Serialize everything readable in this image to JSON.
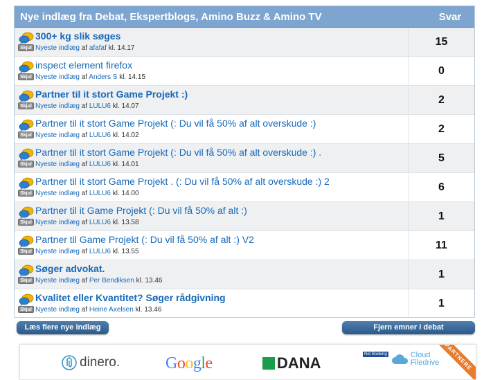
{
  "header": {
    "title": "Nye indlæg fra Debat, Ekspertblogs, Amino Buzz & Amino TV",
    "count_label": "Svar"
  },
  "skjul_label": "Skjul",
  "newest_label": "Nyeste indlæg",
  "by_label": "af",
  "at_label": "kl.",
  "posts": [
    {
      "title": "300+ kg slik søges",
      "bold": true,
      "author": "afafaf",
      "time": "14.17",
      "replies": "15"
    },
    {
      "title": "inspect element firefox",
      "bold": false,
      "author": "Anders S",
      "time": "14.15",
      "replies": "0"
    },
    {
      "title": "Partner til it stort Game Projekt :)",
      "bold": true,
      "author": "LULU6",
      "time": "14.07",
      "replies": "2"
    },
    {
      "title": "Partner til it stort Game Projekt (: Du vil få 50% af alt overskude :)",
      "bold": false,
      "author": "LULU6",
      "time": "14.02",
      "replies": "2"
    },
    {
      "title": "Partner til it stort Game Projekt (: Du vil få 50% af alt overskude :) .",
      "bold": false,
      "author": "LULU6",
      "time": "14.01",
      "replies": "5"
    },
    {
      "title": "Partner til it stort Game Projekt . (: Du vil få 50% af alt overskude :) 2",
      "bold": false,
      "author": "LULU6",
      "time": "14.00",
      "replies": "6"
    },
    {
      "title": "Partner til it Game Projekt (: Du vil få 50% af alt :)",
      "bold": false,
      "author": "LULU6",
      "time": "13.58",
      "replies": "1"
    },
    {
      "title": "Partner til Game Projekt (: Du vil få 50% af alt :) V2",
      "bold": false,
      "author": "LULU6",
      "time": "13.55",
      "replies": "11"
    },
    {
      "title": "Søger advokat.",
      "bold": true,
      "author": "Per Bendiksen",
      "time": "13.46",
      "replies": "1"
    },
    {
      "title": "Kvalitet eller Kvantitet? Søger rådgivning",
      "bold": true,
      "author": "Heine Axelsen",
      "time": "13.46",
      "replies": "1"
    }
  ],
  "buttons": {
    "more": "Læs flere nye indlæg",
    "remove": "Fjern emner i debat"
  },
  "partners": {
    "ribbon": "PARTNERE",
    "logos": [
      {
        "name": "dinero.",
        "icon": "paperclip-icon"
      },
      {
        "name": "Google"
      },
      {
        "name": "DANA"
      },
      {
        "name": "Cloud Filedrive",
        "small": "Net Booking"
      }
    ]
  },
  "colors": {
    "header_bg": "#7da5cf",
    "link": "#1769b8",
    "button": "#2b5a8a",
    "ribbon": "#e87b2c"
  }
}
